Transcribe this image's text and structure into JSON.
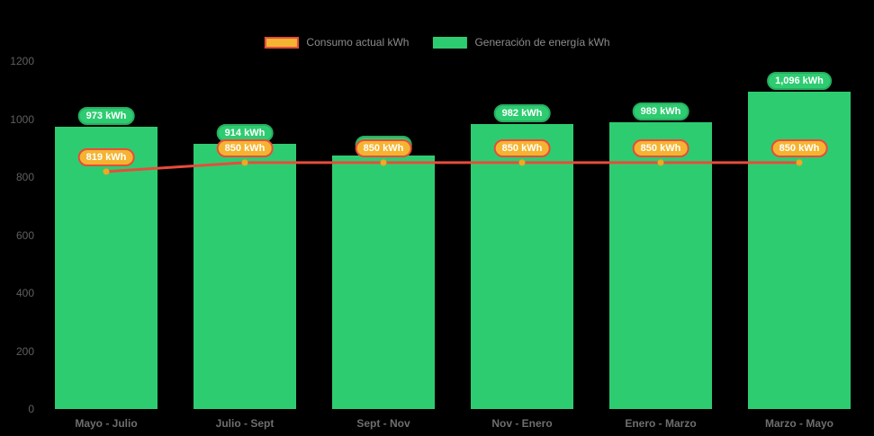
{
  "legend": {
    "items": [
      {
        "label": "Consumo actual kWh"
      },
      {
        "label": "Generación de energía kWh"
      }
    ]
  },
  "chart_data": {
    "type": "bar",
    "title": "",
    "categories": [
      "Mayo - Julio",
      "Julio - Sept",
      "Sept - Nov",
      "Nov - Enero",
      "Enero - Marzo",
      "Marzo - Mayo"
    ],
    "series": [
      {
        "name": "Generación de energía kWh",
        "type": "bar",
        "values": [
          973,
          914,
          875,
          982,
          989,
          1096
        ],
        "value_labels": [
          "973 kWh",
          "914 kWh",
          "875 kWh",
          "982 kWh",
          "989 kWh",
          "1,096 kWh"
        ],
        "color": "#2ecc71",
        "label_border_color": "#27ae60"
      },
      {
        "name": "Consumo actual kWh",
        "type": "line",
        "values": [
          819,
          850,
          850,
          850,
          850,
          850
        ],
        "value_labels": [
          "819 kWh",
          "850 kWh",
          "850 kWh",
          "850 kWh",
          "850 kWh",
          "850 kWh"
        ],
        "color": "#e74c3c",
        "point_color": "#f5a623",
        "label_fill_color": "#f4b431",
        "label_border_color": "#e74c3c"
      }
    ],
    "yticks": [
      0,
      200,
      400,
      600,
      800,
      1000,
      1200
    ],
    "ylim": [
      0,
      1200
    ],
    "grid": false,
    "legend_position": "top",
    "background": "#000000",
    "axis_text_color": "#5f5f5f",
    "category_text_color": "#6e6e6e",
    "label_text_color": "#ffffff"
  }
}
